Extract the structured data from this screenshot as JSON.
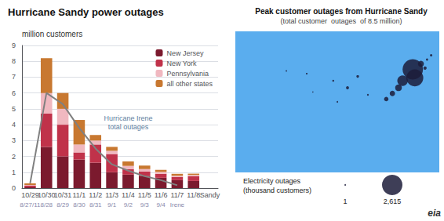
{
  "chart_data": [
    {
      "type": "bar",
      "stacked": true,
      "title": "Hurricane Sandy power outages",
      "y_label": "million customers",
      "categories": [
        "10/29",
        "10/30",
        "10/31",
        "11/1",
        "11/2",
        "11/3",
        "11/4",
        "11/5",
        "11/6",
        "11/7",
        "11/8",
        "Sandy"
      ],
      "secondary_categories": [
        "8/27/11",
        "8/28",
        "8/29",
        "8/30",
        "8/31",
        "9/1",
        "9/2",
        "9/3",
        "9/4",
        "Irene",
        null,
        null
      ],
      "series": [
        {
          "name": "New Jersey",
          "color": "#7B1A2E",
          "values": [
            0.05,
            2.6,
            2.0,
            1.8,
            1.6,
            1.0,
            0.85,
            0.75,
            0.65,
            0.5,
            0.45,
            0.0
          ]
        },
        {
          "name": "New York",
          "color": "#C0324A",
          "values": [
            0.1,
            2.1,
            2.0,
            0.45,
            1.15,
            1.15,
            0.35,
            0.3,
            0.25,
            0.2,
            0.3,
            0.0
          ]
        },
        {
          "name": "Pennsylvania",
          "color": "#F0B8C0",
          "values": [
            0.05,
            1.3,
            1.0,
            0.5,
            0.25,
            0.2,
            0.2,
            0.15,
            0.12,
            0.08,
            0.08,
            0.0
          ]
        },
        {
          "name": "all other states",
          "color": "#C87830",
          "values": [
            0.1,
            2.2,
            1.0,
            1.55,
            0.35,
            0.25,
            0.28,
            0.22,
            0.13,
            0.12,
            0.08,
            0.0
          ]
        },
        {
          "type": "line",
          "color": "#808080",
          "values": [
            0.3,
            6.0,
            5.3,
            3.8,
            2.5,
            1.5,
            1.1,
            0.75,
            0.5,
            0.18,
            null,
            null
          ]
        }
      ],
      "annotations": [
        {
          "text": "Hurricane Irene\ntotal outages"
        }
      ],
      "ylim": [
        0,
        9
      ],
      "yticks": [
        0,
        1,
        2,
        3,
        4,
        5,
        6,
        7,
        8,
        9
      ],
      "grid": true,
      "legend": "upper right"
    },
    {
      "type": "scatter",
      "title": "Peak customer outages from Hurricane Sandy",
      "subtitle": "(total customer  outages  of 8.5 million)",
      "x": [
        0.87,
        0.88,
        0.82,
        0.8,
        0.91,
        0.93,
        0.96,
        0.94,
        0.77,
        0.74,
        0.55,
        0.48,
        0.35,
        0.25,
        0.38,
        0.6,
        0.65,
        0.5
      ],
      "y": [
        0.73,
        0.67,
        0.65,
        0.6,
        0.77,
        0.74,
        0.83,
        0.8,
        0.56,
        0.52,
        0.6,
        0.65,
        0.7,
        0.72,
        0.57,
        0.68,
        0.55,
        0.5
      ],
      "sizes": [
        2615,
        1800,
        700,
        280,
        220,
        70,
        35,
        30,
        180,
        120,
        55,
        25,
        18,
        12,
        8,
        45,
        20,
        15
      ],
      "color": "#1c1c3a",
      "xlim": [
        0,
        1
      ],
      "ylim": [
        0,
        1
      ],
      "tick_labels": false,
      "grid": false,
      "annotations": [
        "Electricity outages",
        "(thousand customers)",
        "eia"
      ],
      "size_legend": [
        {
          "value": 1,
          "label": "1"
        },
        {
          "value": 2615,
          "label": "2,615"
        }
      ]
    }
  ]
}
